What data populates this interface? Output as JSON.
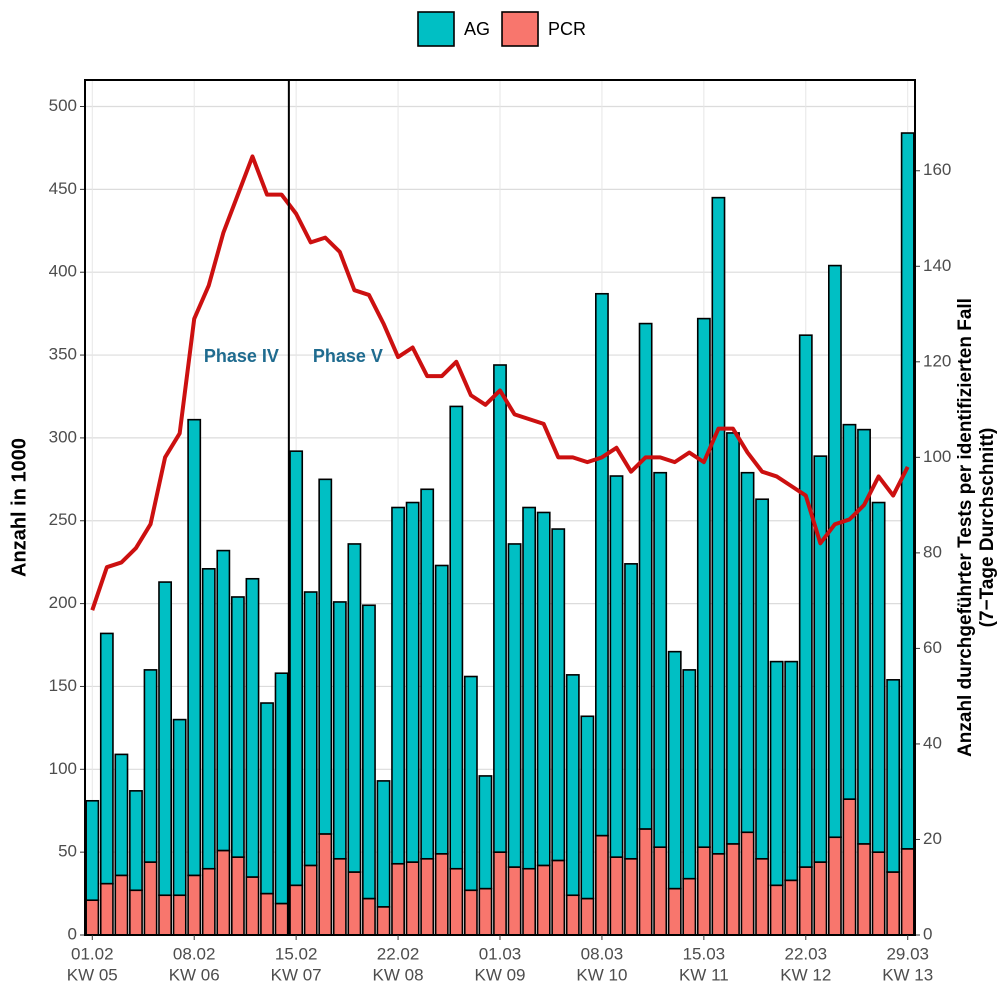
{
  "chart_data": {
    "type": "bar",
    "stacked": true,
    "categories": [
      "01.02",
      null,
      null,
      null,
      null,
      null,
      null,
      "08.02",
      null,
      null,
      null,
      null,
      null,
      null,
      "15.02",
      null,
      null,
      null,
      null,
      null,
      null,
      "22.02",
      null,
      null,
      null,
      null,
      null,
      null,
      "01.03",
      null,
      null,
      null,
      null,
      null,
      null,
      "08.03",
      null,
      null,
      null,
      null,
      null,
      null,
      "15.03",
      null,
      null,
      null,
      null,
      null,
      null,
      "22.03",
      null,
      null,
      null,
      null,
      null,
      null,
      "29.03"
    ],
    "week_labels": [
      "KW 05",
      null,
      null,
      null,
      null,
      null,
      null,
      "KW 06",
      null,
      null,
      null,
      null,
      null,
      null,
      "KW 07",
      null,
      null,
      null,
      null,
      null,
      null,
      "KW 08",
      null,
      null,
      null,
      null,
      null,
      null,
      "KW 09",
      null,
      null,
      null,
      null,
      null,
      null,
      "KW 10",
      null,
      null,
      null,
      null,
      null,
      null,
      "KW 11",
      null,
      null,
      null,
      null,
      null,
      null,
      "KW 12",
      null,
      null,
      null,
      null,
      null,
      null,
      "KW 13"
    ],
    "series": [
      {
        "name": "AG",
        "color": "#00BFC4",
        "values": [
          60,
          151,
          73,
          60,
          116,
          189,
          106,
          275,
          181,
          181,
          157,
          180,
          115,
          139,
          262,
          165,
          214,
          155,
          198,
          177,
          76,
          215,
          217,
          223,
          174,
          279,
          129,
          68,
          294,
          195,
          218,
          213,
          200,
          133,
          110,
          327,
          230,
          178,
          305,
          226,
          143,
          126,
          319,
          396,
          248,
          217,
          217,
          135,
          132,
          321,
          245,
          345,
          226,
          250,
          211,
          116,
          432
        ]
      },
      {
        "name": "PCR",
        "color": "#F8766D",
        "values": [
          21,
          31,
          36,
          27,
          44,
          24,
          24,
          36,
          40,
          51,
          47,
          35,
          25,
          19,
          30,
          42,
          61,
          46,
          38,
          22,
          17,
          43,
          44,
          46,
          49,
          40,
          27,
          28,
          50,
          41,
          40,
          42,
          45,
          24,
          22,
          60,
          47,
          46,
          64,
          53,
          28,
          34,
          53,
          49,
          55,
          62,
          46,
          30,
          33,
          41,
          44,
          59,
          82,
          55,
          50,
          38,
          52
        ]
      },
      {
        "type": "line",
        "axis": "y2",
        "color": "#CC1010",
        "values": [
          68,
          77,
          78,
          81,
          86,
          100,
          105,
          129,
          136,
          147,
          155,
          163,
          155,
          155,
          151,
          145,
          146,
          143,
          135,
          134,
          128,
          121,
          123,
          117,
          117,
          120,
          113,
          111,
          114,
          109,
          108,
          107,
          100,
          100,
          99,
          100,
          102,
          97,
          100,
          100,
          99,
          101,
          99,
          106,
          106,
          101,
          97,
          96,
          94,
          92,
          82,
          86,
          87,
          90,
          96,
          92,
          98
        ]
      }
    ],
    "ylabel": "Anzahl in 1000",
    "y2label": [
      "Anzahl durchgeführter Tests per identifizierten Fall",
      "(7−Tage Durchschnitt)"
    ],
    "ylim": [
      0,
      516
    ],
    "yticks": [
      0,
      50,
      100,
      150,
      200,
      250,
      300,
      350,
      400,
      450,
      500
    ],
    "y2lim": [
      0,
      179
    ],
    "y2ticks": [
      0,
      20,
      40,
      60,
      80,
      100,
      120,
      140,
      160
    ],
    "grid": true,
    "legend": "top",
    "annotations": [
      "Phase IV",
      "Phase V"
    ]
  }
}
